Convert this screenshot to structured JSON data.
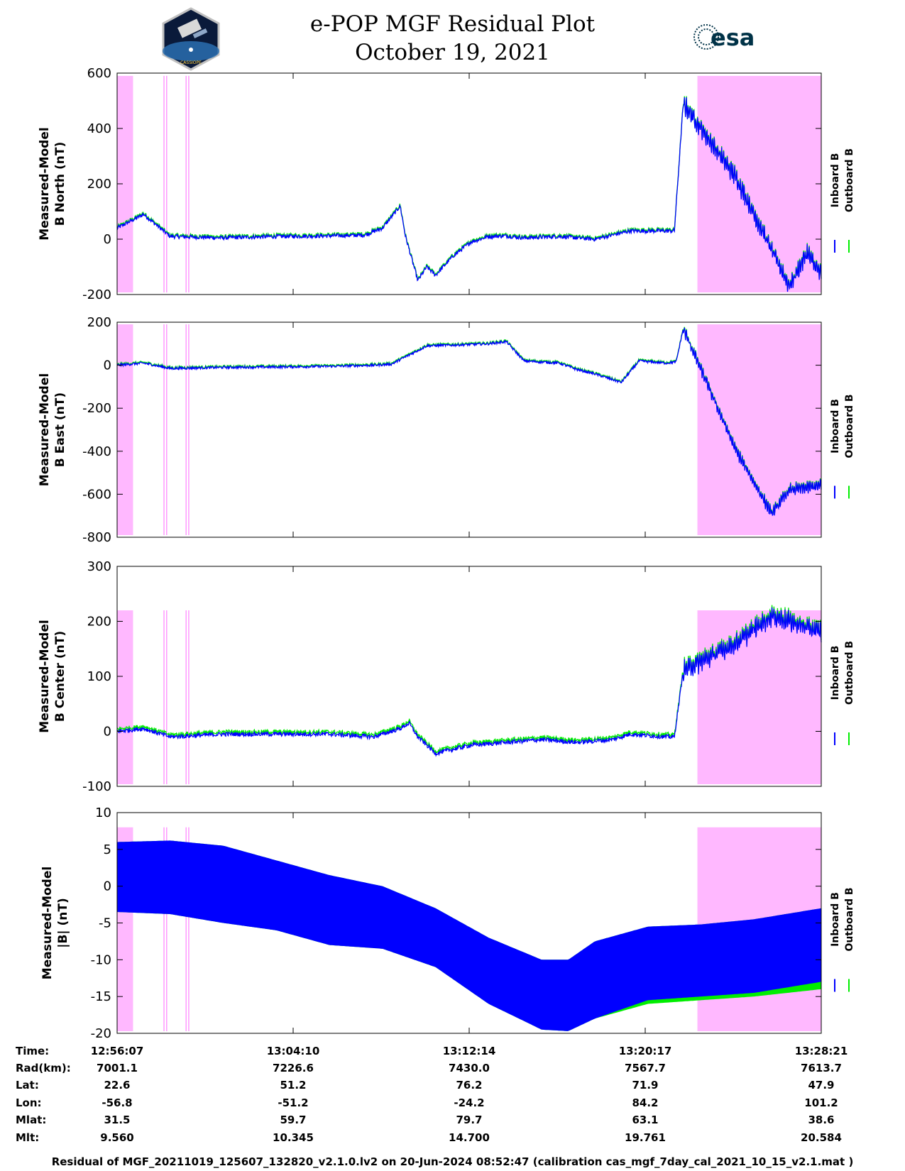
{
  "header": {
    "title_line1": "e-POP MGF Residual Plot",
    "title_line2": "October 19, 2021",
    "logo_left": "CASSIOPE",
    "logo_right": "esa"
  },
  "colors": {
    "inboard": "#0000ff",
    "outboard": "#00ee00",
    "shade": "#ffb8ff",
    "shade_line": "#ff99ff"
  },
  "legend": {
    "inboard": "Inboard B",
    "outboard": "Outboard B"
  },
  "chart_data": [
    {
      "type": "line",
      "ylabel": [
        "Measured-Model",
        "B North (nT)"
      ],
      "ylim": [
        -200,
        600
      ],
      "yticks": [
        -200,
        0,
        200,
        400,
        600
      ],
      "shade_top": 590,
      "series": [
        {
          "name": "Inboard B"
        },
        {
          "name": "Outboard B"
        }
      ],
      "x": [
        0,
        1.5,
        3,
        6,
        9,
        12,
        14,
        15,
        16,
        16.3,
        17,
        17.5,
        18,
        19,
        20,
        21,
        22,
        23,
        25,
        27,
        29,
        30,
        31,
        31.5,
        32,
        35,
        38,
        39,
        39.8
      ],
      "y": [
        40,
        90,
        10,
        5,
        10,
        12,
        15,
        40,
        120,
        10,
        -150,
        -100,
        -130,
        -60,
        -10,
        10,
        12,
        5,
        10,
        0,
        30,
        30,
        30,
        30,
        490,
        220,
        -170,
        -50,
        -130
      ],
      "noise": 15
    },
    {
      "type": "line",
      "ylabel": [
        "Measured-Model",
        "B East (nT)"
      ],
      "ylim": [
        -800,
        200
      ],
      "yticks": [
        -800,
        -600,
        -400,
        -200,
        0,
        200
      ],
      "shade_top": 190,
      "series": [
        {
          "name": "Inboard B"
        },
        {
          "name": "Outboard B"
        }
      ],
      "x": [
        0,
        1.5,
        3,
        6,
        9,
        12,
        14.5,
        15.5,
        17.5,
        19.5,
        21,
        22,
        23,
        25,
        26,
        27,
        28.5,
        29.5,
        31,
        31.6,
        32,
        35,
        37,
        38,
        39.8
      ],
      "y": [
        0,
        10,
        -15,
        -10,
        -8,
        -5,
        0,
        5,
        90,
        95,
        100,
        110,
        20,
        10,
        -20,
        -40,
        -80,
        20,
        10,
        15,
        170,
        -400,
        -690,
        -580,
        -560
      ],
      "noise": 12
    },
    {
      "type": "line",
      "ylabel": [
        "Measured-Model",
        "B Center (nT)"
      ],
      "ylim": [
        -100,
        300
      ],
      "yticks": [
        -100,
        0,
        100,
        200,
        300
      ],
      "shade_top": 220,
      "series": [
        {
          "name": "Inboard B"
        },
        {
          "name": "Outboard B"
        }
      ],
      "x": [
        0,
        1.5,
        3,
        6,
        9,
        12,
        14.5,
        16,
        16.5,
        17,
        18,
        20,
        22,
        24,
        26,
        28,
        29,
        31,
        31.5,
        32,
        35,
        37,
        39.8
      ],
      "y": [
        0,
        5,
        -10,
        -5,
        -5,
        -5,
        -10,
        5,
        15,
        -10,
        -40,
        -25,
        -20,
        -15,
        -20,
        -15,
        -5,
        -10,
        -10,
        110,
        160,
        210,
        180
      ],
      "noise": 8
    },
    {
      "type": "line",
      "ylabel": [
        "Measured-Model",
        "|B| (nT)"
      ],
      "ylim": [
        -20,
        10
      ],
      "yticks": [
        -20,
        -15,
        -10,
        -5,
        0,
        5,
        10
      ],
      "shade_top": 8,
      "series": [
        {
          "name": "Inboard B"
        },
        {
          "name": "Outboard B"
        }
      ],
      "x": [
        0,
        3,
        6,
        9,
        12,
        15,
        18,
        21,
        24,
        25.5,
        27,
        30,
        33,
        36,
        39.8
      ],
      "upper": [
        6,
        6.2,
        5.5,
        3.5,
        1.5,
        0,
        -3,
        -7,
        -10,
        -10,
        -7.5,
        -5.5,
        -5.2,
        -4.5,
        -3
      ],
      "lower": [
        -3.5,
        -3.8,
        -5,
        -6,
        -8,
        -8.5,
        -11,
        -16,
        -19.5,
        -19.7,
        -18,
        -15.5,
        -15,
        -14.5,
        -13
      ],
      "outboard_lower": [
        -3.5,
        -3.8,
        -5,
        -6,
        -8,
        -8.5,
        -11,
        -16,
        -19.5,
        -19.7,
        -18,
        -16,
        -15.5,
        -15,
        -14
      ]
    }
  ],
  "shaded_regions_min": [
    [
      0,
      0.9
    ],
    [
      32.8,
      39.8
    ]
  ],
  "marker_lines_min": [
    2.65,
    2.8,
    3.9,
    4.05
  ],
  "x_range_min": [
    0,
    39.8
  ],
  "time_table": {
    "row_labels": [
      "Time:",
      "Rad(km):",
      "Lat:",
      "Lon:",
      "Mlat:",
      "Mlt:"
    ],
    "columns": [
      {
        "values": [
          "12:56:07",
          "7001.1",
          "22.6",
          "-56.8",
          "31.5",
          "9.560"
        ]
      },
      {
        "values": [
          "13:04:10",
          "7226.6",
          "51.2",
          "-51.2",
          "59.7",
          "10.345"
        ]
      },
      {
        "values": [
          "13:12:14",
          "7430.0",
          "76.2",
          "-24.2",
          "79.7",
          "14.700"
        ]
      },
      {
        "values": [
          "13:20:17",
          "7567.7",
          "71.9",
          "84.2",
          "63.1",
          "19.761"
        ]
      },
      {
        "values": [
          "13:28:21",
          "7613.7",
          "47.9",
          "101.2",
          "38.6",
          "20.584"
        ]
      }
    ]
  },
  "footer": "Residual of MGF_20211019_125607_132820_v2.1.0.lv2 on 20-Jun-2024 08:52:47 (calibration cas_mgf_7day_cal_2021_10_15_v2.1.mat )"
}
